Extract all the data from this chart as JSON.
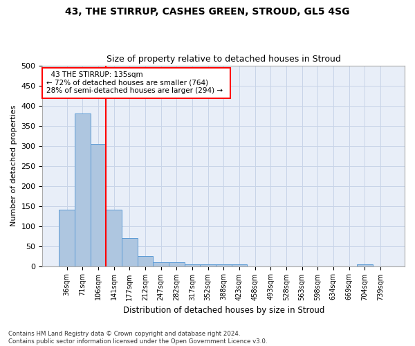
{
  "title1": "43, THE STIRRUP, CASHES GREEN, STROUD, GL5 4SG",
  "title2": "Size of property relative to detached houses in Stroud",
  "xlabel": "Distribution of detached houses by size in Stroud",
  "ylabel": "Number of detached properties",
  "annotation_line1": "43 THE STIRRUP: 135sqm",
  "annotation_line2": "← 72% of detached houses are smaller (764)",
  "annotation_line3": "28% of semi-detached houses are larger (294) →",
  "bin_labels": [
    "36sqm",
    "71sqm",
    "106sqm",
    "141sqm",
    "177sqm",
    "212sqm",
    "247sqm",
    "282sqm",
    "317sqm",
    "352sqm",
    "388sqm",
    "423sqm",
    "458sqm",
    "493sqm",
    "528sqm",
    "563sqm",
    "598sqm",
    "634sqm",
    "669sqm",
    "704sqm",
    "739sqm"
  ],
  "bar_values": [
    140,
    380,
    305,
    140,
    70,
    25,
    10,
    10,
    5,
    5,
    5,
    5,
    0,
    0,
    0,
    0,
    0,
    0,
    0,
    5,
    0
  ],
  "bar_color": "#aec6e0",
  "bar_edge_color": "#5b9bd5",
  "marker_color": "red",
  "ylim": [
    0,
    500
  ],
  "yticks": [
    0,
    50,
    100,
    150,
    200,
    250,
    300,
    350,
    400,
    450,
    500
  ],
  "grid_color": "#c8d4e8",
  "bg_color": "#e8eef8",
  "footnote": "Contains HM Land Registry data © Crown copyright and database right 2024.\nContains public sector information licensed under the Open Government Licence v3.0."
}
